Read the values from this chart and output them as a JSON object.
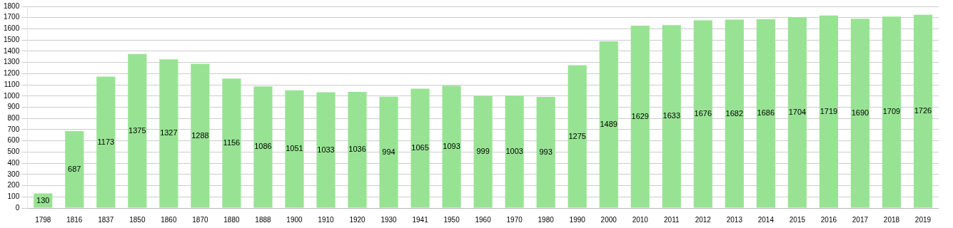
{
  "chart_data": {
    "type": "bar",
    "categories": [
      "1798",
      "1816",
      "1837",
      "1850",
      "1860",
      "1870",
      "1880",
      "1888",
      "1900",
      "1910",
      "1920",
      "1930",
      "1941",
      "1950",
      "1960",
      "1970",
      "1980",
      "1990",
      "2000",
      "2010",
      "2011",
      "2012",
      "2013",
      "2014",
      "2015",
      "2016",
      "2017",
      "2018",
      "2019"
    ],
    "values": [
      130,
      687,
      1173,
      1375,
      1327,
      1288,
      1156,
      1086,
      1051,
      1033,
      1036,
      994,
      1065,
      1093,
      999,
      1003,
      993,
      1275,
      1489,
      1629,
      1633,
      1676,
      1682,
      1686,
      1704,
      1719,
      1690,
      1709,
      1726
    ],
    "color": "#98e393",
    "ylim": [
      0,
      1800
    ],
    "yticks": [
      0,
      100,
      200,
      300,
      400,
      500,
      600,
      700,
      800,
      900,
      1000,
      1100,
      1200,
      1300,
      1400,
      1500,
      1600,
      1700,
      1800
    ],
    "grid": "y",
    "data_labels": true
  }
}
